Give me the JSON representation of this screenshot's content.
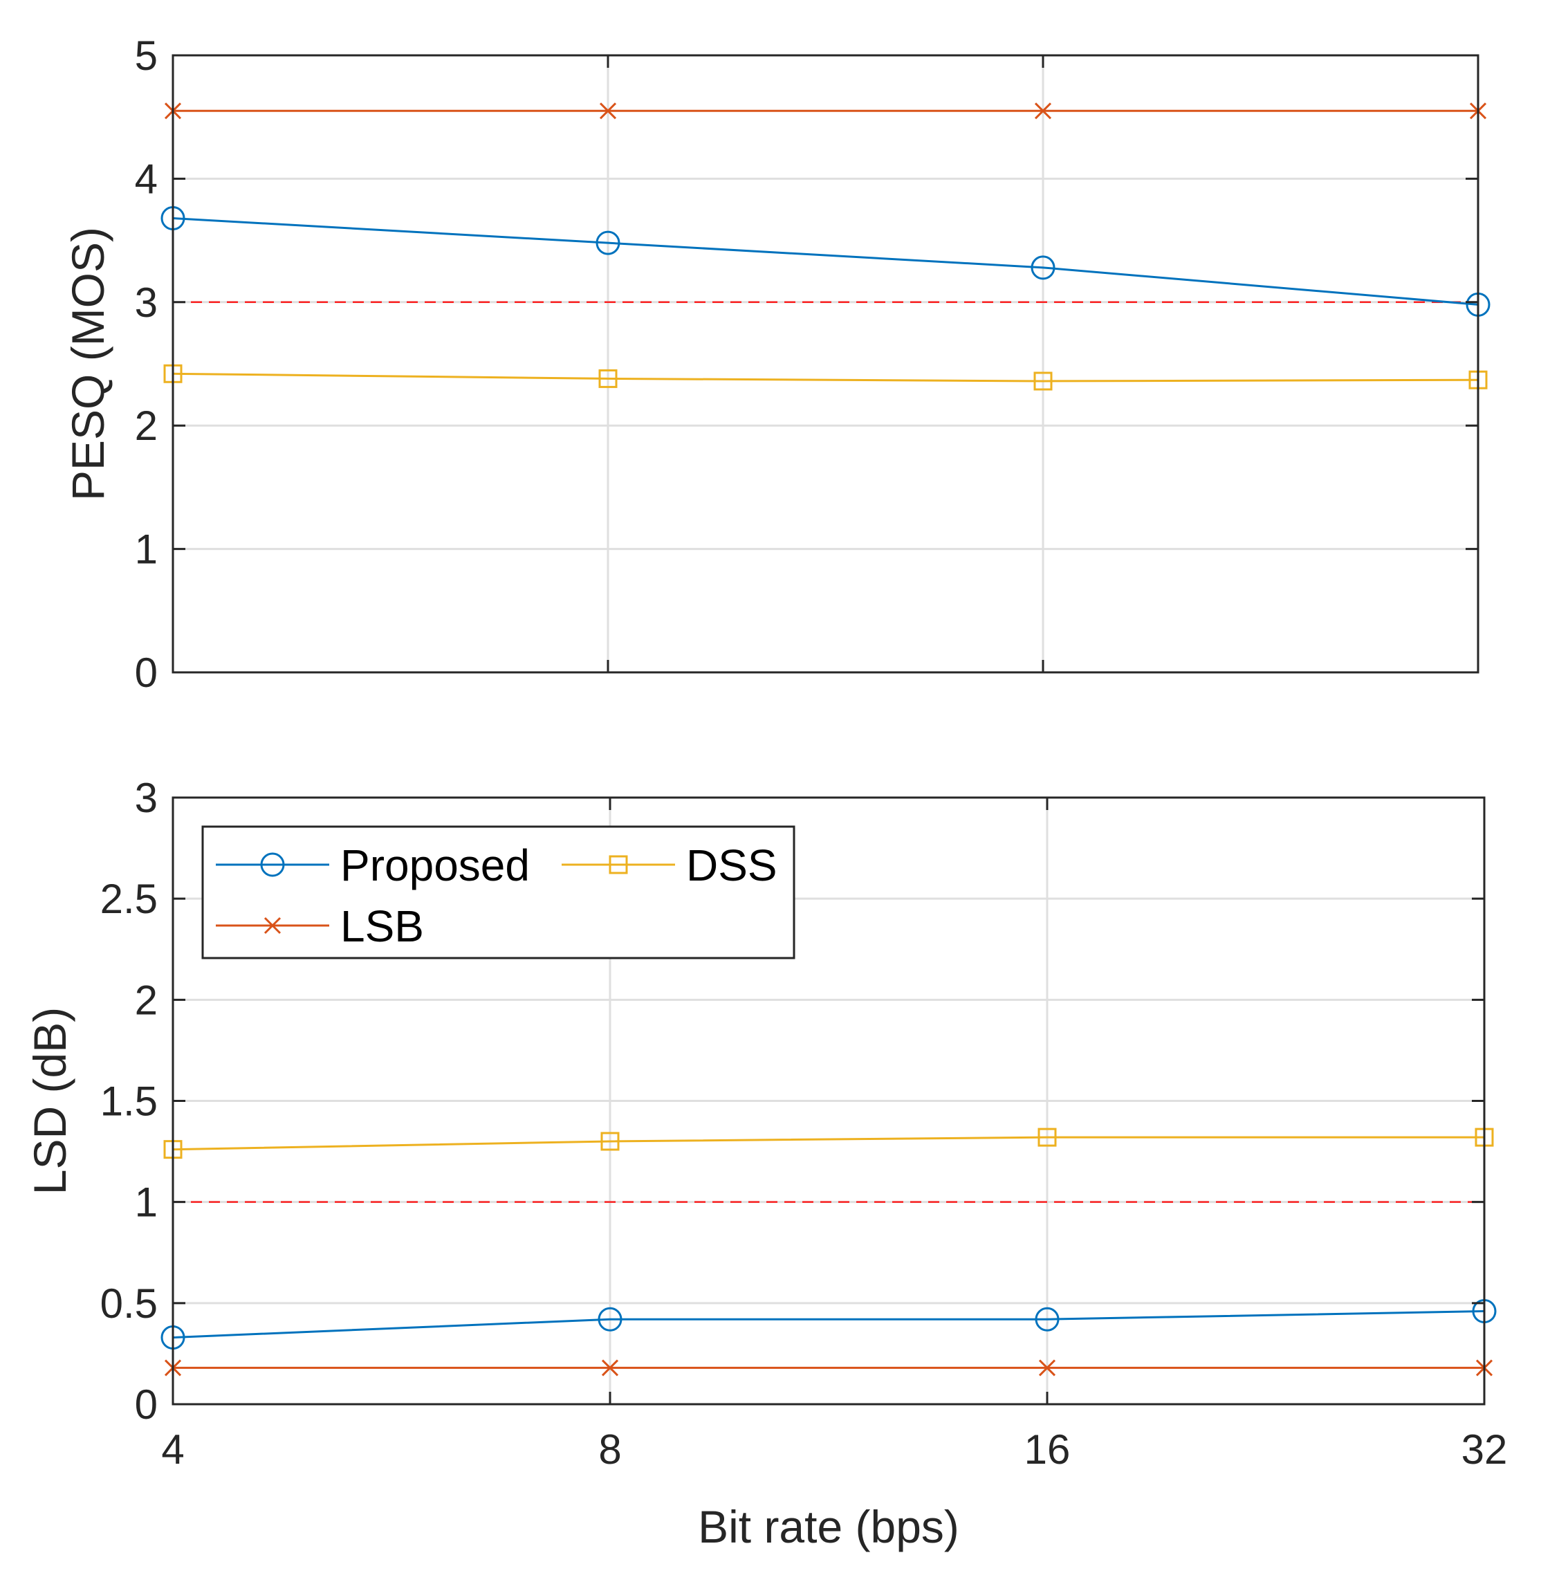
{
  "chart_data": [
    {
      "type": "line",
      "x": [
        4,
        8,
        16,
        32
      ],
      "xscale": "log2",
      "xticks": [
        "4",
        "8",
        "16",
        "32"
      ],
      "show_xtick_labels": false,
      "xlabel": "",
      "ylabel": "PESQ (MOS)",
      "ylim": [
        0,
        5
      ],
      "yticks": [
        "0",
        "1",
        "2",
        "3",
        "4",
        "5"
      ],
      "grid": true,
      "series": [
        {
          "name": "Proposed",
          "values": [
            3.68,
            3.48,
            3.28,
            2.98
          ],
          "color": "#0072BD",
          "marker": "circle"
        },
        {
          "name": "LSB",
          "values": [
            4.55,
            4.55,
            4.55,
            4.55
          ],
          "color": "#D95319",
          "marker": "x"
        },
        {
          "name": "DSS",
          "values": [
            2.42,
            2.38,
            2.36,
            2.37
          ],
          "color": "#EDB120",
          "marker": "square"
        }
      ],
      "reference_line": {
        "y": 3,
        "color": "#FF0000",
        "style": "dashed"
      }
    },
    {
      "type": "line",
      "x": [
        4,
        8,
        16,
        32
      ],
      "xscale": "log2",
      "xticks": [
        "4",
        "8",
        "16",
        "32"
      ],
      "show_xtick_labels": true,
      "xlabel": "Bit rate (bps)",
      "ylabel": "LSD (dB)",
      "ylim": [
        0,
        3
      ],
      "yticks": [
        "0",
        "0.5",
        "1",
        "1.5",
        "2",
        "2.5",
        "3"
      ],
      "grid": true,
      "series": [
        {
          "name": "Proposed",
          "values": [
            0.33,
            0.42,
            0.42,
            0.46
          ],
          "color": "#0072BD",
          "marker": "circle"
        },
        {
          "name": "LSB",
          "values": [
            0.18,
            0.18,
            0.18,
            0.18
          ],
          "color": "#D95319",
          "marker": "x"
        },
        {
          "name": "DSS",
          "values": [
            1.26,
            1.3,
            1.32,
            1.32
          ],
          "color": "#EDB120",
          "marker": "square"
        }
      ],
      "reference_line": {
        "y": 1,
        "color": "#FF0000",
        "style": "dashed"
      },
      "legend": {
        "placement": "top-left",
        "entries": [
          {
            "label": "Proposed",
            "color": "#0072BD",
            "marker": "circle"
          },
          {
            "label": "DSS",
            "color": "#EDB120",
            "marker": "square"
          },
          {
            "label": "LSB",
            "color": "#D95319",
            "marker": "x"
          }
        ]
      }
    }
  ]
}
